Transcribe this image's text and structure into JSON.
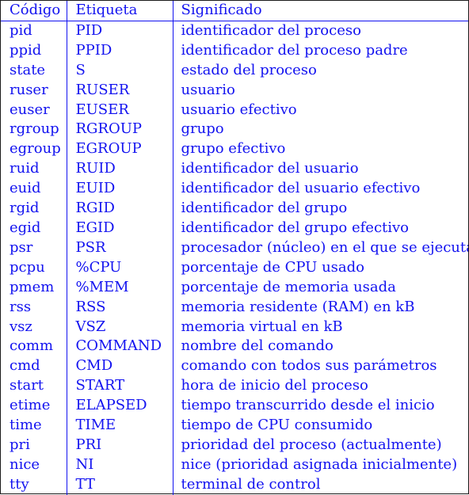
{
  "table": {
    "headers": [
      "Código",
      "Etiqueta",
      "Significado"
    ],
    "rows": [
      [
        "pid",
        "PID",
        "identificador del proceso"
      ],
      [
        "ppid",
        "PPID",
        "identificador del proceso padre"
      ],
      [
        "state",
        "S",
        "estado del proceso"
      ],
      [
        "ruser",
        "RUSER",
        "usuario"
      ],
      [
        "euser",
        "EUSER",
        "usuario efectivo"
      ],
      [
        "rgroup",
        "RGROUP",
        "grupo"
      ],
      [
        "egroup",
        "EGROUP",
        "grupo efectivo"
      ],
      [
        "ruid",
        "RUID",
        "identificador del usuario"
      ],
      [
        "euid",
        "EUID",
        "identificador del usuario efectivo"
      ],
      [
        "rgid",
        "RGID",
        "identificador del grupo"
      ],
      [
        "egid",
        "EGID",
        "identificador del grupo efectivo"
      ],
      [
        "psr",
        "PSR",
        "procesador (núcleo) en el que se ejecuta"
      ],
      [
        "pcpu",
        "%CPU",
        "porcentaje de CPU usado"
      ],
      [
        "pmem",
        "%MEM",
        "porcentaje de memoria usada"
      ],
      [
        "rss",
        "RSS",
        "memoria residente (RAM) en kB"
      ],
      [
        "vsz",
        "VSZ",
        "memoria virtual en kB"
      ],
      [
        "comm",
        "COMMAND",
        "nombre del comando"
      ],
      [
        "cmd",
        "CMD",
        "comando con todos sus parámetros"
      ],
      [
        "start",
        "START",
        "hora de inicio del proceso"
      ],
      [
        "etime",
        "ELAPSED",
        "tiempo transcurrido desde el inicio"
      ],
      [
        "time",
        "TIME",
        "tiempo de CPU consumido"
      ],
      [
        "pri",
        "PRI",
        "prioridad del proceso (actualmente)"
      ],
      [
        "nice",
        "NI",
        "nice (prioridad asignada inicialmente)"
      ],
      [
        "tty",
        "TT",
        "terminal de control"
      ]
    ]
  },
  "colors": {
    "text": "#1212f0",
    "rules": "#1212f0",
    "frame": "#1a1a1a"
  }
}
